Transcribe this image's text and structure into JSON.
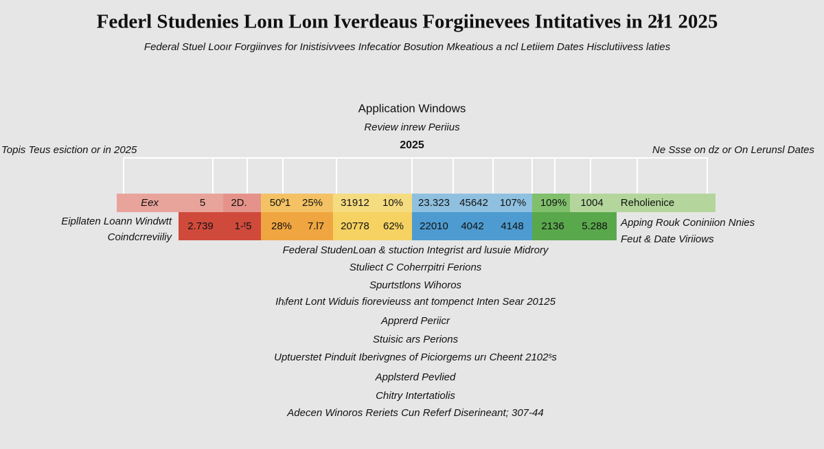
{
  "header": {
    "title": "Federl Studenies Loın Loın Iverdeaus Forgiinevees Intitatives in 2ɫ1 2025",
    "subtitle": "Federal Stuel Looır Forgiinves for Inistisivvees Infecatior Bosution Mkeatious a ncl Letiiem Dates Hisclutiivess laties"
  },
  "timeline": {
    "heading": "Application Windows",
    "subheading": "Review inrew Periius",
    "year": "2025",
    "left_label": "Topis Teus esiction or in 2025",
    "right_label": "Ne Sssе on dz or On Lerunsl Dates",
    "row1": [
      "Eex",
      "5",
      "2D.",
      "50º1",
      "25%",
      "31912",
      "10%",
      "23.323",
      "45642",
      "107%",
      "109%",
      "1004",
      "Reholienice"
    ],
    "row2": [
      "2.739",
      "1-ᵗ5",
      "28%",
      "7.l7",
      "20778",
      "62%",
      "22010",
      "4042",
      "4148",
      "2136",
      "5.288"
    ],
    "row2_left": [
      "Eipllaten Loann Windwtt",
      "Coindcrreviiliy"
    ],
    "row2_right": [
      "Apping Rouk Coniniion Nnies",
      "Feut & Date Viriiows"
    ]
  },
  "notes": [
    "Federal StudenLoan & stuction Integrist ard lusuie Midrory",
    "Stuliect C Coherrpitri Ferions",
    "Spurtstlons Wihoros",
    "Ihᵢfent Lont Widuis fiorevieuss ant tompenct Inten Sear 20125",
    "Apprerd Periicr",
    "Stuisic ars Perions",
    "Uptuerstet Pinduit Iberivgnes of Piciorgems urı Cheent 2102ˢs",
    "Applsterd Pevlied",
    "Chitry Intertatiolis",
    "Adecen Winoros Reriets Cun Referf Diserineant; 307-44"
  ]
}
